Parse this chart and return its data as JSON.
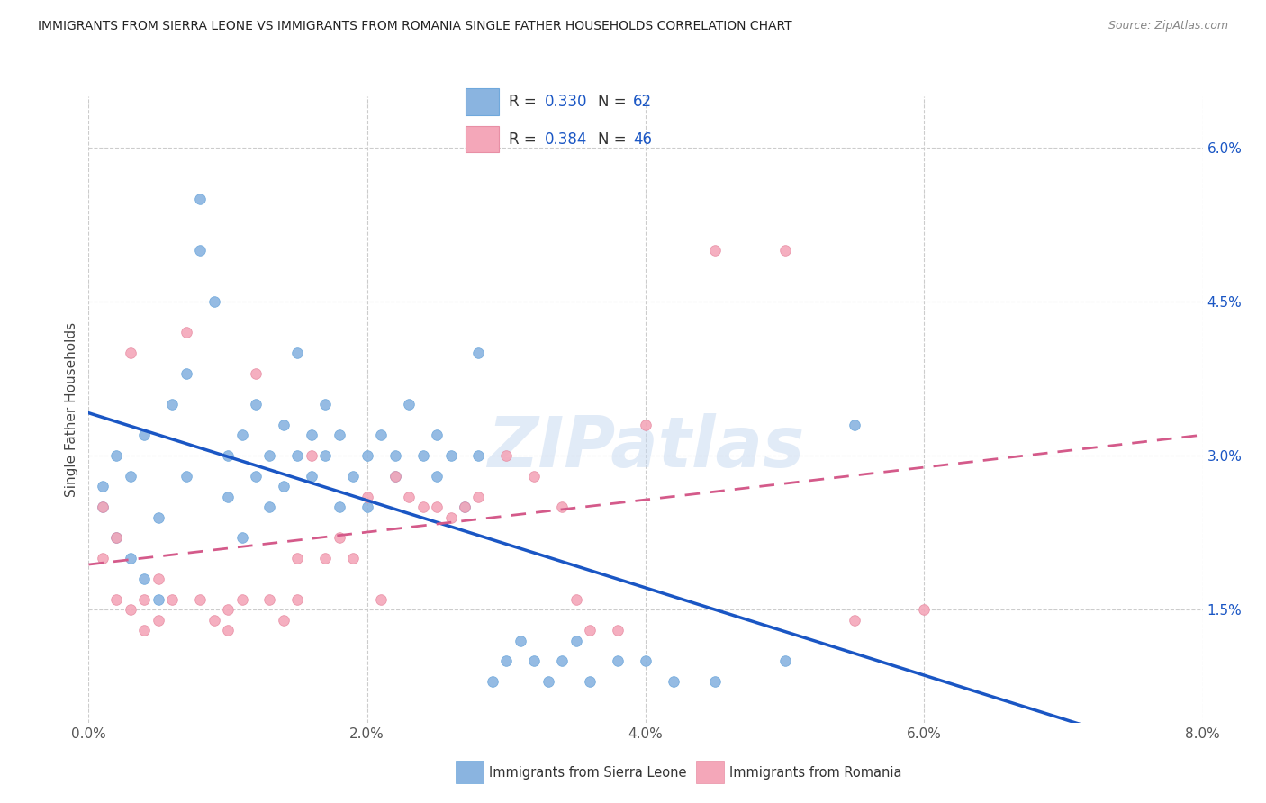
{
  "title": "IMMIGRANTS FROM SIERRA LEONE VS IMMIGRANTS FROM ROMANIA SINGLE FATHER HOUSEHOLDS CORRELATION CHART",
  "source": "Source: ZipAtlas.com",
  "ylabel": "Single Father Households",
  "xlabel_tick_vals": [
    0.0,
    0.02,
    0.04,
    0.06,
    0.08
  ],
  "ylabel_tick_vals": [
    0.015,
    0.03,
    0.045,
    0.06
  ],
  "xmin": 0.0,
  "xmax": 0.08,
  "ymin": 0.004,
  "ymax": 0.065,
  "sierra_leone_color": "#8ab4e0",
  "sierra_leone_edge": "#6fa8dc",
  "romania_color": "#f4a7b9",
  "romania_edge": "#e88fa5",
  "sierra_leone_R": 0.33,
  "sierra_leone_N": 62,
  "romania_R": 0.384,
  "romania_N": 46,
  "line_sierra_leone_color": "#1a56c4",
  "line_romania_color": "#d45a8a",
  "watermark": "ZIPatlas",
  "sl_x": [
    0.001,
    0.001,
    0.002,
    0.002,
    0.003,
    0.003,
    0.004,
    0.004,
    0.005,
    0.005,
    0.006,
    0.007,
    0.007,
    0.008,
    0.008,
    0.009,
    0.01,
    0.01,
    0.011,
    0.011,
    0.012,
    0.012,
    0.013,
    0.013,
    0.014,
    0.014,
    0.015,
    0.015,
    0.016,
    0.016,
    0.017,
    0.017,
    0.018,
    0.018,
    0.019,
    0.02,
    0.02,
    0.021,
    0.022,
    0.022,
    0.023,
    0.024,
    0.025,
    0.025,
    0.026,
    0.027,
    0.028,
    0.028,
    0.029,
    0.03,
    0.031,
    0.032,
    0.033,
    0.034,
    0.035,
    0.036,
    0.038,
    0.04,
    0.042,
    0.045,
    0.05,
    0.055
  ],
  "sl_y": [
    0.027,
    0.025,
    0.03,
    0.022,
    0.028,
    0.02,
    0.032,
    0.018,
    0.024,
    0.016,
    0.035,
    0.038,
    0.028,
    0.05,
    0.055,
    0.045,
    0.03,
    0.026,
    0.032,
    0.022,
    0.035,
    0.028,
    0.03,
    0.025,
    0.033,
    0.027,
    0.04,
    0.03,
    0.032,
    0.028,
    0.035,
    0.03,
    0.032,
    0.025,
    0.028,
    0.03,
    0.025,
    0.032,
    0.03,
    0.028,
    0.035,
    0.03,
    0.032,
    0.028,
    0.03,
    0.025,
    0.04,
    0.03,
    0.008,
    0.01,
    0.012,
    0.01,
    0.008,
    0.01,
    0.012,
    0.008,
    0.01,
    0.01,
    0.008,
    0.008,
    0.01,
    0.033
  ],
  "ro_x": [
    0.001,
    0.001,
    0.002,
    0.002,
    0.003,
    0.003,
    0.004,
    0.004,
    0.005,
    0.005,
    0.006,
    0.007,
    0.008,
    0.009,
    0.01,
    0.01,
    0.011,
    0.012,
    0.013,
    0.014,
    0.015,
    0.015,
    0.016,
    0.017,
    0.018,
    0.019,
    0.02,
    0.021,
    0.022,
    0.023,
    0.024,
    0.025,
    0.026,
    0.027,
    0.028,
    0.03,
    0.032,
    0.034,
    0.036,
    0.038,
    0.04,
    0.045,
    0.05,
    0.055,
    0.06,
    0.035
  ],
  "ro_y": [
    0.025,
    0.02,
    0.022,
    0.016,
    0.04,
    0.015,
    0.016,
    0.013,
    0.018,
    0.014,
    0.016,
    0.042,
    0.016,
    0.014,
    0.015,
    0.013,
    0.016,
    0.038,
    0.016,
    0.014,
    0.02,
    0.016,
    0.03,
    0.02,
    0.022,
    0.02,
    0.026,
    0.016,
    0.028,
    0.026,
    0.025,
    0.025,
    0.024,
    0.025,
    0.026,
    0.03,
    0.028,
    0.025,
    0.013,
    0.013,
    0.033,
    0.05,
    0.05,
    0.014,
    0.015,
    0.016
  ]
}
